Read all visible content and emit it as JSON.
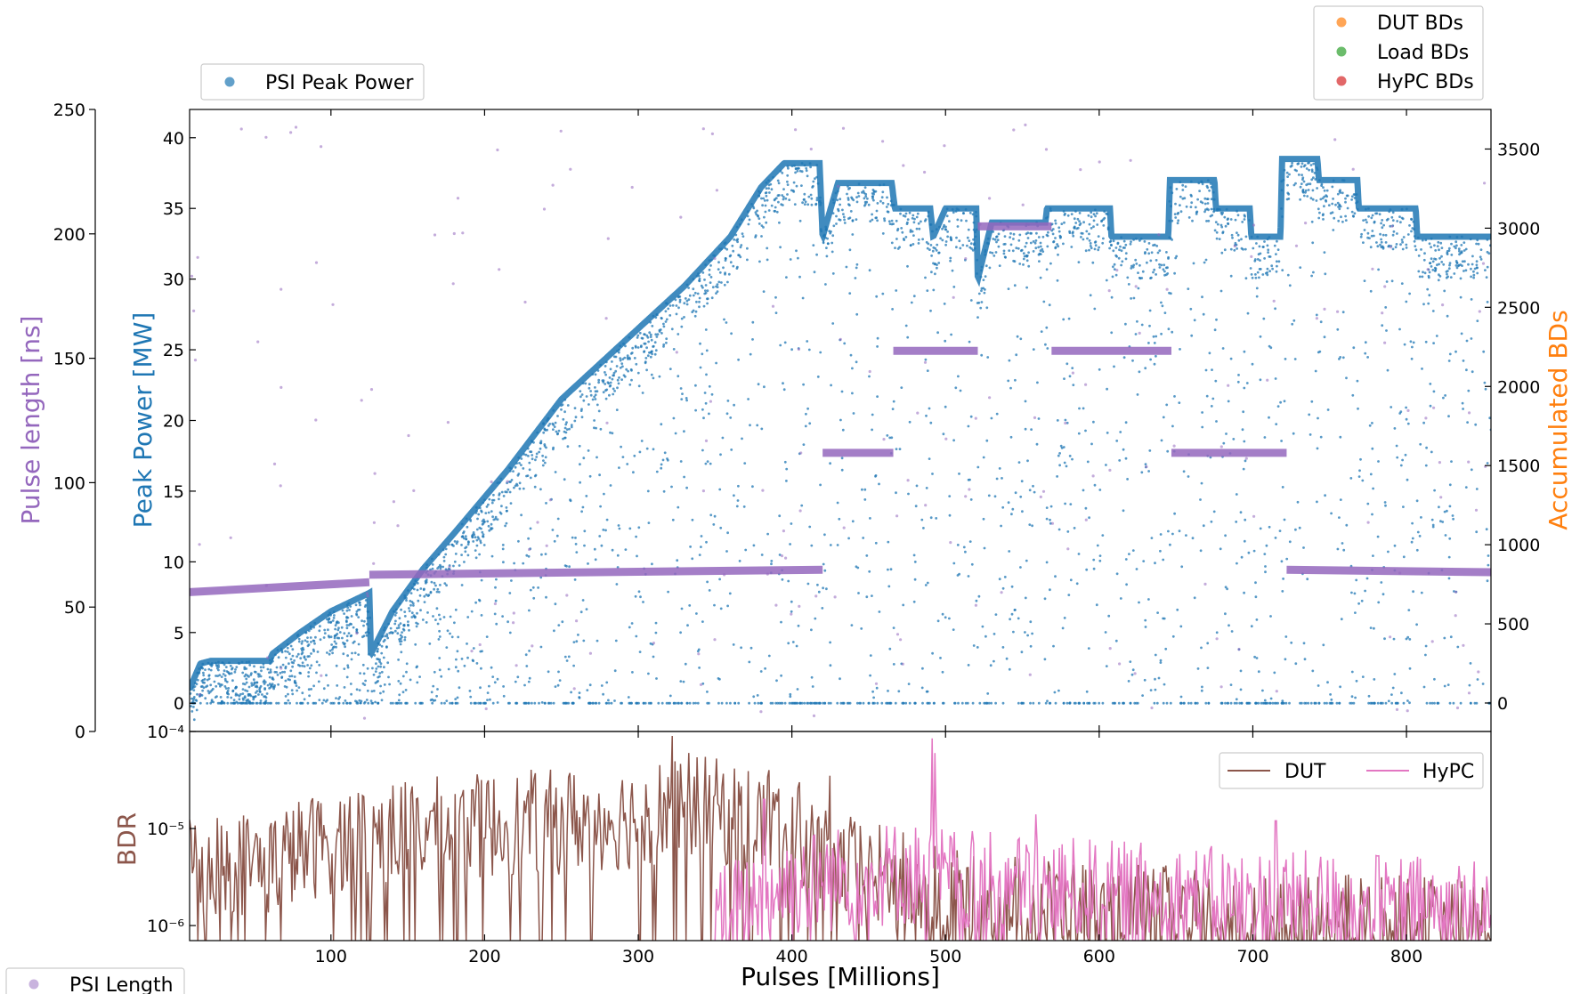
{
  "chart_data": [
    {
      "type": "scatter",
      "panel": "top",
      "xlabel": "",
      "xlim": [
        8,
        855
      ],
      "axes": {
        "left_outer": {
          "label": "Pulse length [ns]",
          "ylim": [
            0,
            250
          ],
          "ticks": [
            "0",
            "50",
            "100",
            "150",
            "200",
            "250"
          ]
        },
        "left_inner": {
          "label": "Peak Power [MW]",
          "ylim": [
            -2,
            42
          ],
          "ticks": [
            "0",
            "5",
            "10",
            "15",
            "20",
            "25",
            "30",
            "35",
            "40"
          ]
        },
        "right": {
          "label": "Accumulated BDs",
          "ylim": [
            -180,
            3750
          ],
          "ticks": [
            "0",
            "500",
            "1000",
            "1500",
            "2000",
            "2500",
            "3000",
            "3500"
          ]
        }
      },
      "legends": {
        "power": {
          "placement": "top-left",
          "entries": [
            {
              "name": "PSI Peak Power",
              "color": "#1f77b4"
            }
          ]
        },
        "bds": {
          "placement": "top-right",
          "entries": [
            {
              "name": "DUT BDs",
              "color": "#ff7f0e"
            },
            {
              "name": "Load BDs",
              "color": "#2ca02c"
            },
            {
              "name": "HyPC BDs",
              "color": "#d62728"
            }
          ]
        },
        "length": {
          "placement": "bottom-left",
          "entries": [
            {
              "name": "PSI Length",
              "color": "#9467bd"
            }
          ]
        }
      },
      "series": [
        {
          "name": "PSI Peak Power",
          "color": "#1f77b4",
          "axis": "left_inner",
          "envelope": [
            [
              8,
              1
            ],
            [
              15,
              2.8
            ],
            [
              22,
              3
            ],
            [
              60,
              3
            ],
            [
              62,
              3.5
            ],
            [
              80,
              5
            ],
            [
              100,
              6.5
            ],
            [
              125,
              7.8
            ],
            [
              126,
              3.5
            ],
            [
              140,
              6.5
            ],
            [
              160,
              9.5
            ],
            [
              180,
              12
            ],
            [
              215,
              16.5
            ],
            [
              250,
              21.5
            ],
            [
              300,
              26.5
            ],
            [
              330,
              29.5
            ],
            [
              360,
              33
            ],
            [
              380,
              36.5
            ],
            [
              395,
              38.2
            ],
            [
              418,
              38.2
            ],
            [
              420,
              33
            ],
            [
              430,
              36.8
            ],
            [
              465,
              36.8
            ],
            [
              467,
              35
            ],
            [
              490,
              35
            ],
            [
              492,
              33
            ],
            [
              500,
              35
            ],
            [
              520,
              35
            ],
            [
              521,
              30
            ],
            [
              530,
              34
            ],
            [
              565,
              34
            ],
            [
              566,
              35
            ],
            [
              607,
              35
            ],
            [
              608,
              33
            ],
            [
              645,
              33
            ],
            [
              646,
              37
            ],
            [
              675,
              37
            ],
            [
              676,
              35
            ],
            [
              698,
              35
            ],
            [
              699,
              33
            ],
            [
              718,
              33
            ],
            [
              719,
              38.5
            ],
            [
              742,
              38.5
            ],
            [
              743,
              37
            ],
            [
              768,
              37
            ],
            [
              769,
              35
            ],
            [
              806,
              35
            ],
            [
              807,
              33
            ],
            [
              855,
              33
            ]
          ]
        },
        {
          "name": "PSI Length",
          "color": "#9467bd",
          "axis": "left_outer",
          "segments": [
            {
              "x": [
                8,
                125
              ],
              "y": [
                56,
                60
              ]
            },
            {
              "x": [
                125,
                420
              ],
              "y": [
                63,
                65
              ]
            },
            {
              "x": [
                420,
                466
              ],
              "y": [
                112,
                112
              ]
            },
            {
              "x": [
                466,
                521
              ],
              "y": [
                153,
                153
              ]
            },
            {
              "x": [
                521,
                569
              ],
              "y": [
                203,
                203
              ]
            },
            {
              "x": [
                569,
                647
              ],
              "y": [
                153,
                153
              ]
            },
            {
              "x": [
                647,
                722
              ],
              "y": [
                112,
                112
              ]
            },
            {
              "x": [
                722,
                855
              ],
              "y": [
                65,
                64
              ]
            }
          ]
        },
        {
          "name": "DUT BDs",
          "color": "#ff7f0e",
          "axis": "right",
          "points": []
        },
        {
          "name": "Load BDs",
          "color": "#2ca02c",
          "axis": "right",
          "points": []
        },
        {
          "name": "HyPC BDs",
          "color": "#d62728",
          "axis": "right",
          "points": []
        }
      ]
    },
    {
      "type": "line",
      "panel": "bottom",
      "xlabel": "Pulses [Millions]",
      "ylabel": "BDR",
      "xlim": [
        8,
        855
      ],
      "ylim": [
        7e-07,
        0.0001
      ],
      "yscale": "log",
      "xticks": [
        "100",
        "200",
        "300",
        "400",
        "500",
        "600",
        "700",
        "800"
      ],
      "yticks": [
        "10⁻⁶",
        "10⁻⁵",
        "10⁻⁴"
      ],
      "legend": {
        "placement": "top-right",
        "entries": [
          {
            "name": "DUT",
            "color": "#8c564b"
          },
          {
            "name": "HyPC",
            "color": "#e377c2"
          }
        ]
      },
      "series": [
        {
          "name": "DUT",
          "color": "#8c564b",
          "range": [
            8,
            855
          ],
          "level": [
            [
              8,
              5e-06
            ],
            [
              60,
              5e-06
            ],
            [
              120,
              1e-05
            ],
            [
              200,
              1.2e-05
            ],
            [
              300,
              1.5e-05
            ],
            [
              330,
              2e-05
            ],
            [
              390,
              1.2e-05
            ],
            [
              420,
              5e-06
            ],
            [
              500,
              2e-06
            ],
            [
              600,
              1.5e-06
            ],
            [
              700,
              1.2e-06
            ],
            [
              855,
              1e-06
            ]
          ],
          "peaks": [
            {
              "x": 322,
              "y": 9e-05
            },
            {
              "x": 333,
              "y": 6e-05
            },
            {
              "x": 385,
              "y": 4e-05
            },
            {
              "x": 405,
              "y": 3e-05
            },
            {
              "x": 425,
              "y": 3.5e-05
            },
            {
              "x": 148,
              "y": 3e-05
            },
            {
              "x": 192,
              "y": 2.5e-05
            },
            {
              "x": 242,
              "y": 2.5e-05
            }
          ]
        },
        {
          "name": "HyPC",
          "color": "#e377c2",
          "range": [
            350,
            855
          ],
          "level": [
            [
              350,
              1.2e-06
            ],
            [
              400,
              3e-06
            ],
            [
              470,
              4e-06
            ],
            [
              520,
              3e-06
            ],
            [
              600,
              2.5e-06
            ],
            [
              700,
              2e-06
            ],
            [
              855,
              1.6e-06
            ]
          ],
          "peaks": [
            {
              "x": 491,
              "y": 8.5e-05
            },
            {
              "x": 493,
              "y": 6e-05
            },
            {
              "x": 382,
              "y": 2e-05
            },
            {
              "x": 559,
              "y": 1.4e-05
            },
            {
              "x": 628,
              "y": 1.5e-05
            },
            {
              "x": 715,
              "y": 1.2e-05
            }
          ]
        }
      ]
    }
  ]
}
